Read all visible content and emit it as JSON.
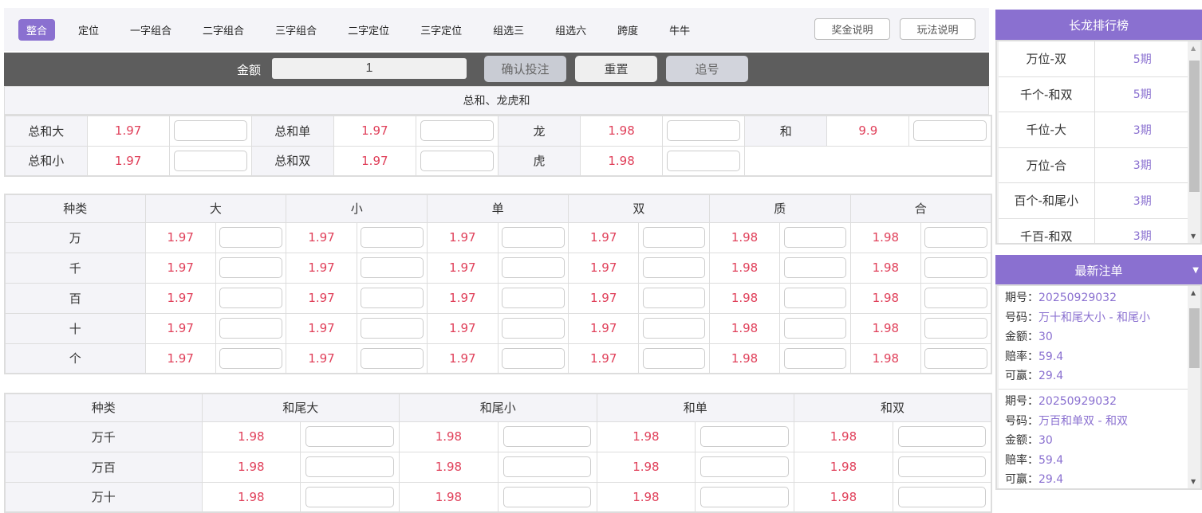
{
  "nav": {
    "tabs": [
      "整合",
      "定位",
      "一字组合",
      "二字组合",
      "三字组合",
      "二字定位",
      "三字定位",
      "组选三",
      "组选六",
      "跨度",
      "牛牛"
    ],
    "active": 0,
    "prize_info": "奖金说明",
    "rules": "玩法说明"
  },
  "bar": {
    "amount_label": "金额",
    "amount_value": "1",
    "confirm": "确认投注",
    "reset": "重置",
    "chase": "追号"
  },
  "sum_section": {
    "title": "总和、龙虎和",
    "rows": [
      [
        [
          "总和大",
          "1.97"
        ],
        [
          "总和单",
          "1.97"
        ],
        [
          "龙",
          "1.98"
        ],
        [
          "和",
          "9.9"
        ]
      ],
      [
        [
          "总和小",
          "1.97"
        ],
        [
          "总和双",
          "1.97"
        ],
        [
          "虎",
          "1.98"
        ]
      ]
    ]
  },
  "pos_table": {
    "headers": [
      "种类",
      "大",
      "小",
      "单",
      "双",
      "质",
      "合"
    ],
    "rows": [
      {
        "name": "万",
        "odds": [
          "1.97",
          "1.97",
          "1.97",
          "1.97",
          "1.98",
          "1.98"
        ]
      },
      {
        "name": "千",
        "odds": [
          "1.97",
          "1.97",
          "1.97",
          "1.97",
          "1.98",
          "1.98"
        ]
      },
      {
        "name": "百",
        "odds": [
          "1.97",
          "1.97",
          "1.97",
          "1.97",
          "1.98",
          "1.98"
        ]
      },
      {
        "name": "十",
        "odds": [
          "1.97",
          "1.97",
          "1.97",
          "1.97",
          "1.98",
          "1.98"
        ]
      },
      {
        "name": "个",
        "odds": [
          "1.97",
          "1.97",
          "1.97",
          "1.97",
          "1.98",
          "1.98"
        ]
      }
    ]
  },
  "pair_table": {
    "headers": [
      "种类",
      "和尾大",
      "和尾小",
      "和单",
      "和双"
    ],
    "rows": [
      {
        "name": "万千",
        "odds": [
          "1.98",
          "1.98",
          "1.98",
          "1.98"
        ]
      },
      {
        "name": "万百",
        "odds": [
          "1.98",
          "1.98",
          "1.98",
          "1.98"
        ]
      },
      {
        "name": "万十",
        "odds": [
          "1.98",
          "1.98",
          "1.98",
          "1.98"
        ]
      }
    ]
  },
  "streaks": {
    "title": "长龙排行榜",
    "items": [
      [
        "万位-双",
        "5期"
      ],
      [
        "千个-和双",
        "5期"
      ],
      [
        "千位-大",
        "3期"
      ],
      [
        "万位-合",
        "3期"
      ],
      [
        "百个-和尾小",
        "3期"
      ],
      [
        "千百-和双",
        "3期"
      ]
    ]
  },
  "latest_bets": {
    "title": "最新注单",
    "labels": {
      "issue": "期号：",
      "number": "号码：",
      "amount": "金额：",
      "odds": "赔率：",
      "win": "可赢："
    },
    "items": [
      {
        "issue": "20250929032",
        "number": "万十和尾大小 - 和尾小",
        "amount": "30",
        "odds": "59.4",
        "win": "29.4"
      },
      {
        "issue": "20250929032",
        "number": "万百和单双 - 和双",
        "amount": "30",
        "odds": "59.4",
        "win": "29.4"
      }
    ]
  },
  "colors": {
    "accent": "#8a70d0",
    "odds": "#e0405a",
    "bar": "#5d5d5d"
  }
}
